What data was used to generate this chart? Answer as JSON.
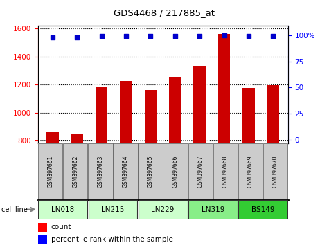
{
  "title": "GDS4468 / 217885_at",
  "samples": [
    "GSM397661",
    "GSM397662",
    "GSM397663",
    "GSM397664",
    "GSM397665",
    "GSM397666",
    "GSM397667",
    "GSM397668",
    "GSM397669",
    "GSM397670"
  ],
  "counts": [
    860,
    845,
    1185,
    1225,
    1160,
    1255,
    1330,
    1560,
    1175,
    1195
  ],
  "percentile_ranks": [
    98,
    98,
    99,
    99.5,
    99,
    99.5,
    99,
    100,
    99,
    99
  ],
  "cell_lines": [
    {
      "name": "LN018",
      "samples": [
        0,
        1
      ],
      "color": "#ccffcc"
    },
    {
      "name": "LN215",
      "samples": [
        2,
        3
      ],
      "color": "#ccffcc"
    },
    {
      "name": "LN229",
      "samples": [
        4,
        5
      ],
      "color": "#ccffcc"
    },
    {
      "name": "LN319",
      "samples": [
        6,
        7
      ],
      "color": "#88ee88"
    },
    {
      "name": "BS149",
      "samples": [
        8,
        9
      ],
      "color": "#33cc33"
    }
  ],
  "ylim_left": [
    780,
    1620
  ],
  "ylim_right": [
    -3.5,
    109
  ],
  "yticks_left": [
    800,
    1000,
    1200,
    1400,
    1600
  ],
  "yticks_right": [
    0,
    25,
    50,
    75,
    100
  ],
  "bar_color": "#cc0000",
  "dot_color": "#0000cc",
  "sample_box_color": "#cccccc",
  "grid_linestyle": "dotted",
  "bar_width": 0.5
}
